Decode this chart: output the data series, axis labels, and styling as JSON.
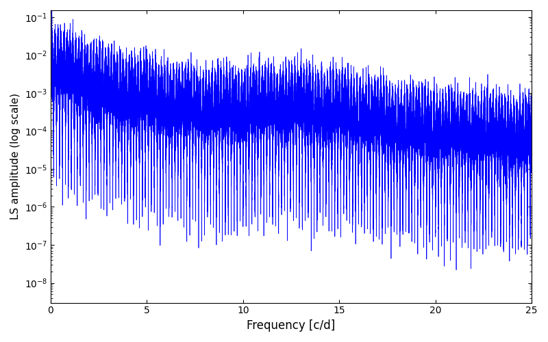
{
  "xlabel": "Frequency [c/d]",
  "ylabel": "LS amplitude (log scale)",
  "line_color": "#0000ff",
  "line_width": 0.5,
  "xlim": [
    0,
    25
  ],
  "ylim": [
    3e-09,
    0.15
  ],
  "freq_max": 25.0,
  "seed": 42,
  "background_color": "#ffffff",
  "figsize": [
    8.0,
    5.0
  ],
  "dpi": 100
}
